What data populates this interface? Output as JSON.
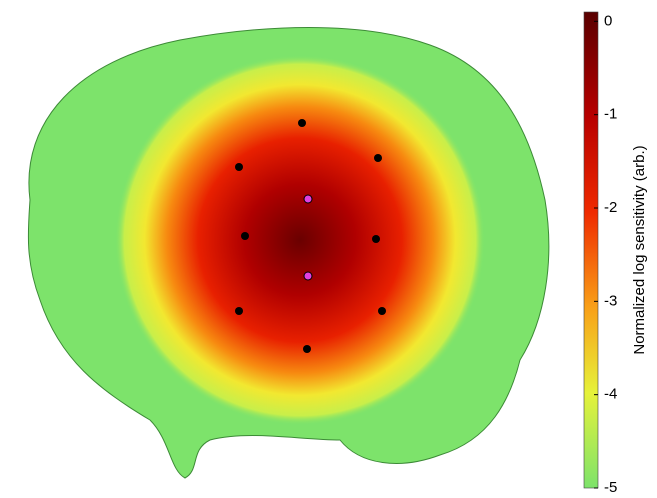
{
  "colorbar": {
    "label": "Normalized log sensitivity (arb.)",
    "lim": [
      -5,
      0.1
    ],
    "ticks": [
      0,
      -1,
      -2,
      -3,
      -4,
      -5
    ]
  }
}
